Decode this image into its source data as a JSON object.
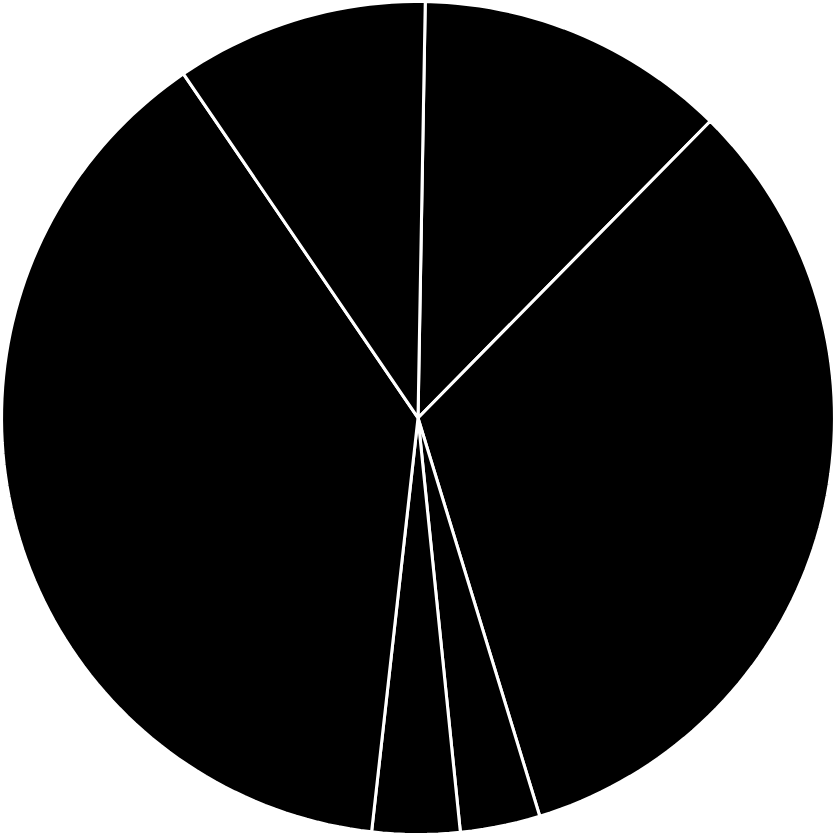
{
  "chart_data": {
    "type": "pie",
    "categories": [
      null,
      null,
      null,
      null,
      null,
      null
    ],
    "values": [
      12.1,
      32.9,
      3.1,
      3.4,
      38.7,
      9.8
    ],
    "colors": [
      "#000000",
      "#000000",
      "#000000",
      "#000000",
      "#000000",
      "#000000"
    ]
  }
}
